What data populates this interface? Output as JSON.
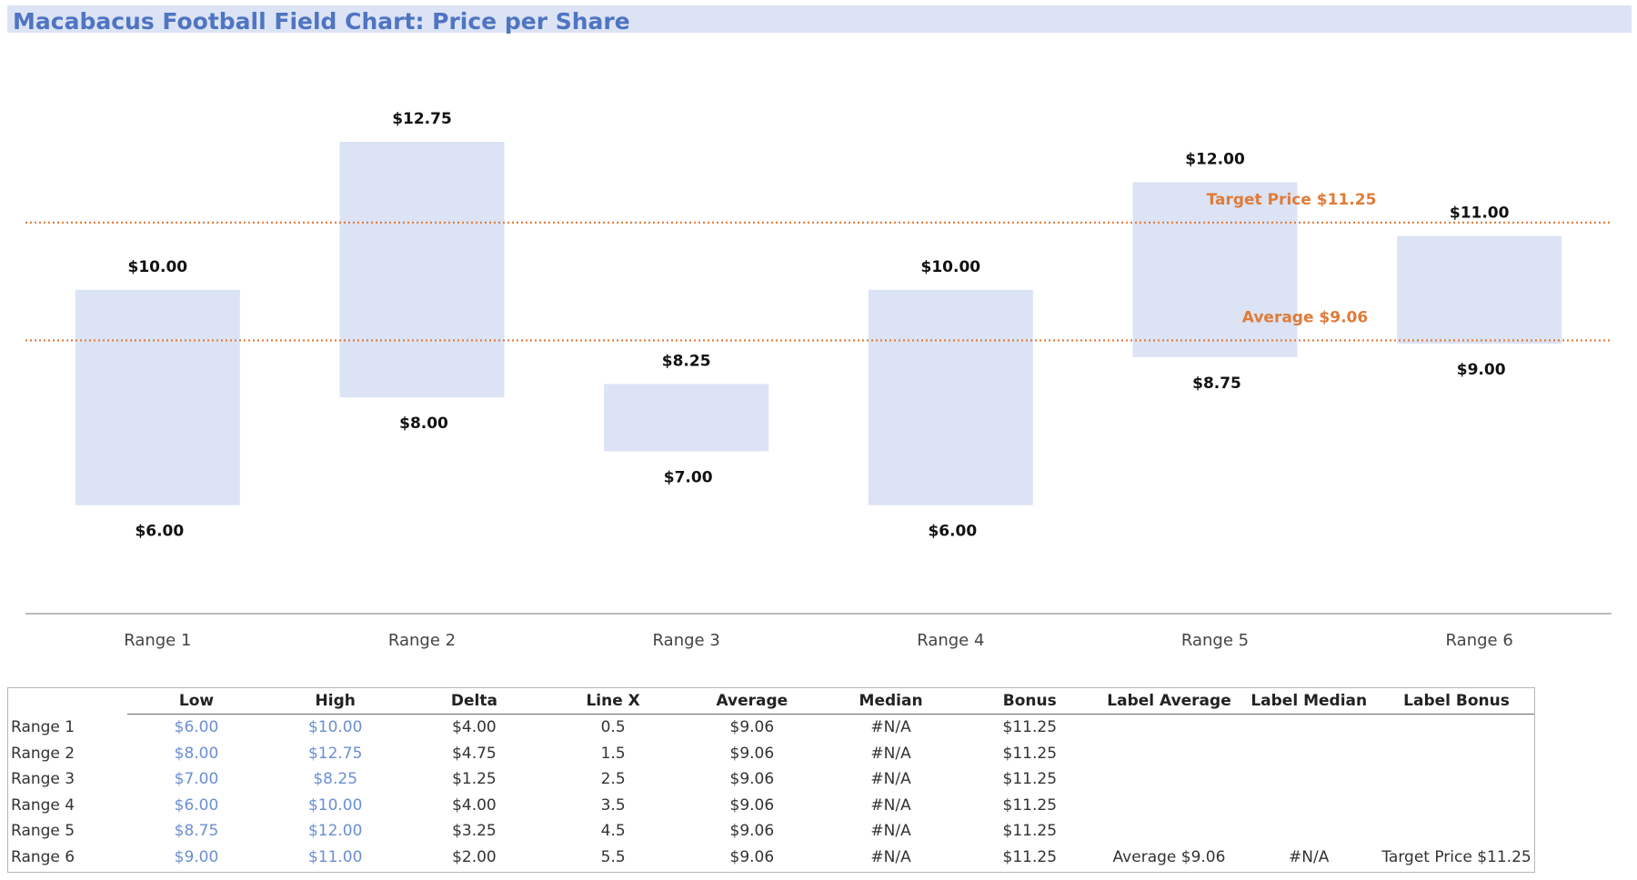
{
  "title": "Macabacus Football Field Chart: Price per Share",
  "colors": {
    "bar": "#dbe3f4",
    "ref_line": "#e07b39",
    "title": "#4f74c2",
    "input": "#6b8fd2"
  },
  "chart_data": {
    "type": "bar",
    "subtype": "floating-range",
    "categories": [
      "Range 1",
      "Range 2",
      "Range 3",
      "Range 4",
      "Range 5",
      "Range 6"
    ],
    "low": [
      6.0,
      8.0,
      7.0,
      6.0,
      8.75,
      9.0
    ],
    "high": [
      10.0,
      12.75,
      8.25,
      10.0,
      12.0,
      11.0
    ],
    "low_labels": [
      "$6.00",
      "$8.00",
      "$7.00",
      "$6.00",
      "$8.75",
      "$9.00"
    ],
    "high_labels": [
      "$10.00",
      "$12.75",
      "$8.25",
      "$10.00",
      "$12.00",
      "$11.00"
    ],
    "reference_lines": [
      {
        "value": 11.25,
        "label": "Target Price $11.25"
      },
      {
        "value": 9.06,
        "label": "Average $9.06"
      }
    ],
    "ylim": [
      4.0,
      14.0
    ],
    "grid": false
  },
  "table": {
    "columns": [
      "",
      "Low",
      "High",
      "Delta",
      "Line X",
      "Average",
      "Median",
      "Bonus",
      "Label Average",
      "Label Median",
      "Label Bonus"
    ],
    "rows": [
      [
        "Range 1",
        "$6.00",
        "$10.00",
        "$4.00",
        "0.5",
        "$9.06",
        "#N/A",
        "$11.25",
        "",
        "",
        ""
      ],
      [
        "Range 2",
        "$8.00",
        "$12.75",
        "$4.75",
        "1.5",
        "$9.06",
        "#N/A",
        "$11.25",
        "",
        "",
        ""
      ],
      [
        "Range 3",
        "$7.00",
        "$8.25",
        "$1.25",
        "2.5",
        "$9.06",
        "#N/A",
        "$11.25",
        "",
        "",
        ""
      ],
      [
        "Range 4",
        "$6.00",
        "$10.00",
        "$4.00",
        "3.5",
        "$9.06",
        "#N/A",
        "$11.25",
        "",
        "",
        ""
      ],
      [
        "Range 5",
        "$8.75",
        "$12.00",
        "$3.25",
        "4.5",
        "$9.06",
        "#N/A",
        "$11.25",
        "",
        "",
        ""
      ],
      [
        "Range 6",
        "$9.00",
        "$11.00",
        "$2.00",
        "5.5",
        "$9.06",
        "#N/A",
        "$11.25",
        "Average $9.06",
        "#N/A",
        "Target Price $11.25"
      ]
    ]
  }
}
